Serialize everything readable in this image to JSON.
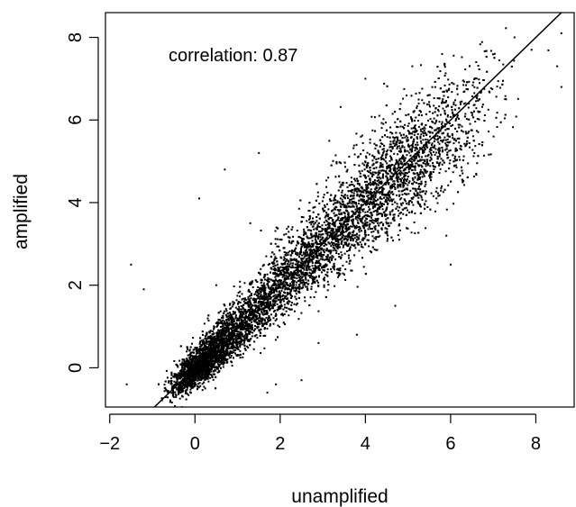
{
  "chart_data": {
    "type": "scatter",
    "title": "",
    "xlabel": "unamplified",
    "ylabel": "amplified",
    "xlim": [
      -2.1,
      8.9
    ],
    "ylim": [
      -0.95,
      8.6
    ],
    "x_ticks": [
      -2,
      0,
      2,
      4,
      6,
      8
    ],
    "y_ticks": [
      0,
      2,
      4,
      6,
      8
    ],
    "x_tick_labels": [
      "−2",
      "0",
      "2",
      "4",
      "6",
      "8"
    ],
    "y_tick_labels": [
      "0",
      "2",
      "4",
      "6",
      "8"
    ],
    "annotation": "correlation:  0.87",
    "correlation": 0.87,
    "fit_line": {
      "intercept": 0.0,
      "slope": 1.0
    },
    "point_count_estimate": 8000,
    "point_distribution": {
      "mode_x": 0.2,
      "mode_y": 0.1,
      "x_range": [
        -1.7,
        8.6
      ],
      "y_range": [
        -0.6,
        8.1
      ]
    },
    "points": [
      {
        "x": -1.5,
        "y": 2.5
      },
      {
        "x": -1.2,
        "y": 1.9
      },
      {
        "x": -1.6,
        "y": -0.4
      },
      {
        "x": 0.1,
        "y": 4.1
      },
      {
        "x": 0.7,
        "y": 4.8
      },
      {
        "x": 1.5,
        "y": 5.2
      },
      {
        "x": 4.0,
        "y": 7.0
      },
      {
        "x": 5.1,
        "y": 7.3
      },
      {
        "x": 5.8,
        "y": 7.6
      },
      {
        "x": 6.6,
        "y": 7.4
      },
      {
        "x": 7.5,
        "y": 8.0
      },
      {
        "x": 7.9,
        "y": 7.7
      },
      {
        "x": 8.5,
        "y": 7.3
      },
      {
        "x": 8.6,
        "y": 6.8
      },
      {
        "x": 8.6,
        "y": 8.1
      },
      {
        "x": 7.3,
        "y": 6.5
      },
      {
        "x": 6.6,
        "y": 4.7
      },
      {
        "x": 6.0,
        "y": 2.5
      },
      {
        "x": 5.9,
        "y": 3.2
      },
      {
        "x": 4.7,
        "y": 1.5
      },
      {
        "x": 3.8,
        "y": 0.8
      },
      {
        "x": 2.9,
        "y": 0.6
      },
      {
        "x": 1.9,
        "y": -0.4
      },
      {
        "x": 1.7,
        "y": -0.6
      },
      {
        "x": 2.5,
        "y": -0.3
      },
      {
        "x": 0.5,
        "y": 2.0
      },
      {
        "x": 1.3,
        "y": 3.5
      }
    ]
  }
}
